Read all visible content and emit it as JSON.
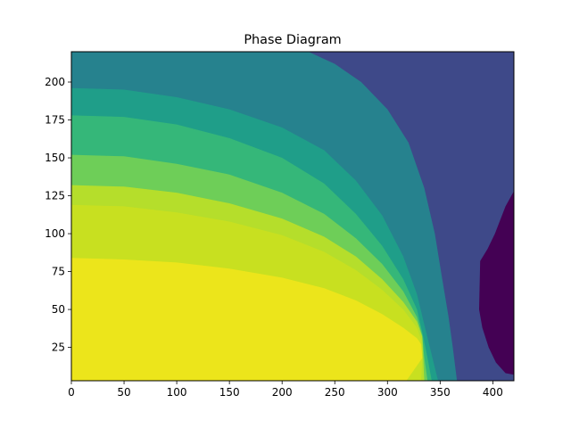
{
  "chart_data": {
    "type": "heatmap",
    "title": "Phase Diagram",
    "xlabel": "",
    "ylabel": "",
    "xlim": [
      0,
      420
    ],
    "ylim": [
      3,
      220
    ],
    "x_ticks": [
      0,
      50,
      100,
      150,
      200,
      250,
      300,
      350,
      400
    ],
    "y_ticks": [
      25,
      50,
      75,
      100,
      125,
      150,
      175,
      200
    ],
    "grid": false,
    "legend": "none",
    "colormap": "viridis",
    "levels": [
      {
        "level": 0,
        "color": "#440154"
      },
      {
        "level": 1,
        "color": "#3e4989"
      },
      {
        "level": 2,
        "color": "#31688e"
      },
      {
        "level": 3,
        "color": "#26828e"
      },
      {
        "level": 4,
        "color": "#1f9e89"
      },
      {
        "level": 5,
        "color": "#35b779"
      },
      {
        "level": 6,
        "color": "#6ece58"
      },
      {
        "level": 7,
        "color": "#b5de2b"
      },
      {
        "level": 8,
        "color": "#c8e020"
      },
      {
        "level": 9,
        "color": "#ece51b"
      }
    ],
    "regions": [
      {
        "level": 1,
        "description": "background region",
        "x": [
          0,
          420
        ],
        "y": [
          3,
          220
        ]
      },
      {
        "level": 3,
        "boundary": [
          [
            0,
            220
          ],
          [
            225,
            220
          ],
          [
            250,
            212
          ],
          [
            275,
            200
          ],
          [
            300,
            182
          ],
          [
            320,
            160
          ],
          [
            335,
            130
          ],
          [
            345,
            100
          ],
          [
            352,
            70
          ],
          [
            358,
            45
          ],
          [
            362,
            25
          ],
          [
            366,
            3
          ],
          [
            0,
            3
          ]
        ]
      },
      {
        "level": 4,
        "boundary": [
          [
            0,
            196
          ],
          [
            50,
            195
          ],
          [
            100,
            190
          ],
          [
            150,
            182
          ],
          [
            200,
            170
          ],
          [
            240,
            155
          ],
          [
            270,
            135
          ],
          [
            295,
            112
          ],
          [
            315,
            85
          ],
          [
            328,
            60
          ],
          [
            335,
            40
          ],
          [
            342,
            20
          ],
          [
            348,
            3
          ],
          [
            0,
            3
          ]
        ]
      },
      {
        "level": 5,
        "boundary": [
          [
            0,
            178
          ],
          [
            50,
            177
          ],
          [
            100,
            172
          ],
          [
            150,
            163
          ],
          [
            200,
            150
          ],
          [
            240,
            133
          ],
          [
            270,
            113
          ],
          [
            295,
            92
          ],
          [
            315,
            70
          ],
          [
            328,
            50
          ],
          [
            333,
            35
          ],
          [
            338,
            18
          ],
          [
            342,
            3
          ],
          [
            0,
            3
          ]
        ]
      },
      {
        "level": 6,
        "boundary": [
          [
            0,
            152
          ],
          [
            50,
            151
          ],
          [
            100,
            146
          ],
          [
            150,
            139
          ],
          [
            200,
            127
          ],
          [
            240,
            113
          ],
          [
            270,
            97
          ],
          [
            295,
            80
          ],
          [
            315,
            62
          ],
          [
            328,
            45
          ],
          [
            333,
            33
          ],
          [
            335,
            18
          ],
          [
            338,
            3
          ],
          [
            0,
            3
          ]
        ]
      },
      {
        "level": 7,
        "boundary": [
          [
            0,
            132
          ],
          [
            50,
            131
          ],
          [
            100,
            127
          ],
          [
            150,
            120
          ],
          [
            200,
            110
          ],
          [
            240,
            98
          ],
          [
            270,
            85
          ],
          [
            295,
            70
          ],
          [
            315,
            55
          ],
          [
            328,
            42
          ],
          [
            333,
            32
          ],
          [
            334,
            18
          ],
          [
            335,
            3
          ],
          [
            0,
            3
          ]
        ]
      },
      {
        "level": 8,
        "boundary": [
          [
            0,
            119
          ],
          [
            50,
            118
          ],
          [
            100,
            114
          ],
          [
            150,
            108
          ],
          [
            200,
            99
          ],
          [
            240,
            88
          ],
          [
            270,
            76
          ],
          [
            295,
            63
          ],
          [
            315,
            50
          ],
          [
            328,
            38
          ],
          [
            332,
            30
          ],
          [
            333,
            18
          ],
          [
            332,
            3
          ],
          [
            0,
            3
          ]
        ]
      },
      {
        "level": 9,
        "boundary": [
          [
            0,
            84
          ],
          [
            50,
            83
          ],
          [
            100,
            81
          ],
          [
            150,
            77
          ],
          [
            200,
            71
          ],
          [
            240,
            64
          ],
          [
            270,
            56
          ],
          [
            295,
            47
          ],
          [
            315,
            38
          ],
          [
            328,
            31
          ],
          [
            332,
            27
          ],
          [
            333,
            18
          ],
          [
            325,
            10
          ],
          [
            318,
            3
          ],
          [
            0,
            3
          ]
        ]
      },
      {
        "level": 0,
        "boundary": [
          [
            420,
            128
          ],
          [
            412,
            118
          ],
          [
            402,
            100
          ],
          [
            395,
            90
          ],
          [
            388,
            82
          ],
          [
            387,
            50
          ],
          [
            390,
            38
          ],
          [
            396,
            25
          ],
          [
            403,
            15
          ],
          [
            412,
            8
          ],
          [
            420,
            7
          ]
        ]
      }
    ]
  }
}
